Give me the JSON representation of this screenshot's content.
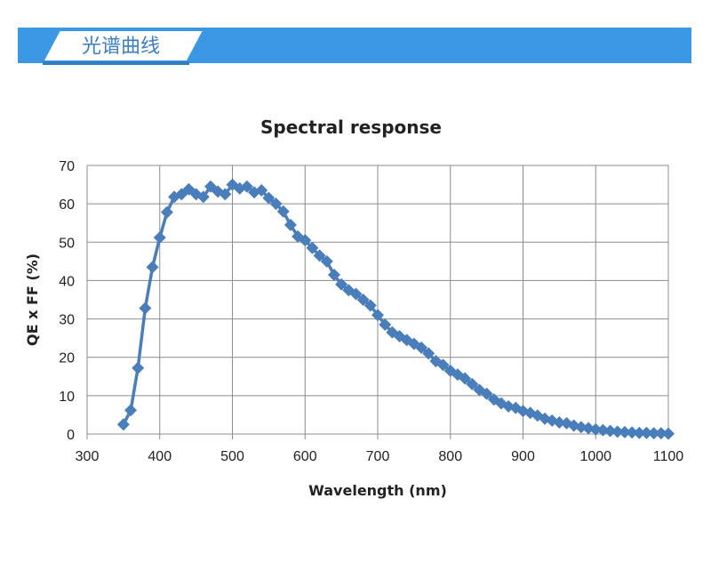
{
  "banner": {
    "title": "光谱曲线",
    "color": "#3a97e4"
  },
  "chart_data": {
    "type": "line",
    "title": "Spectral response",
    "xlabel": "Wavelength (nm)",
    "ylabel": "QE x FF (%)",
    "xlim": [
      300,
      1100
    ],
    "ylim": [
      0,
      70
    ],
    "xticks": [
      300,
      400,
      500,
      600,
      700,
      800,
      900,
      1000,
      1100
    ],
    "yticks": [
      0,
      10,
      20,
      30,
      40,
      50,
      60,
      70
    ],
    "grid": true,
    "legend": "none",
    "series_color": "#4a7ebb",
    "marker": "diamond",
    "series": [
      {
        "x": [
          350,
          360,
          370,
          380,
          390,
          400,
          410,
          420,
          430,
          440,
          450,
          460,
          470,
          480,
          490,
          500,
          510,
          520,
          530,
          540,
          550,
          560,
          570,
          580,
          590,
          600,
          610,
          620,
          630,
          640,
          650,
          660,
          670,
          680,
          690,
          700,
          710,
          720,
          730,
          740,
          750,
          760,
          770,
          780,
          790,
          800,
          810,
          820,
          830,
          840,
          850,
          860,
          870,
          880,
          890,
          900,
          910,
          920,
          930,
          940,
          950,
          960,
          970,
          980,
          990,
          1000,
          1010,
          1020,
          1030,
          1040,
          1050,
          1060,
          1070,
          1080,
          1090,
          1100
        ],
        "values": [
          2.5,
          6.2,
          17.2,
          32.8,
          43.5,
          51.2,
          57.8,
          61.8,
          62.5,
          63.8,
          62.5,
          61.8,
          64.5,
          63.2,
          62.5,
          65.0,
          64.0,
          64.5,
          63.0,
          63.5,
          61.5,
          60.0,
          58.0,
          54.5,
          51.5,
          50.5,
          48.5,
          46.5,
          45.0,
          41.5,
          39.0,
          37.5,
          36.5,
          35.0,
          33.5,
          31.0,
          28.5,
          26.5,
          25.5,
          24.5,
          23.5,
          22.5,
          21.0,
          19.0,
          18.0,
          16.5,
          15.5,
          14.5,
          13.0,
          11.5,
          10.5,
          9.0,
          8.0,
          7.2,
          6.8,
          6.0,
          5.5,
          4.8,
          4.0,
          3.5,
          3.0,
          2.8,
          2.2,
          1.8,
          1.5,
          1.2,
          1.0,
          0.8,
          0.6,
          0.5,
          0.4,
          0.3,
          0.3,
          0.2,
          0.2,
          0.1
        ]
      }
    ]
  }
}
